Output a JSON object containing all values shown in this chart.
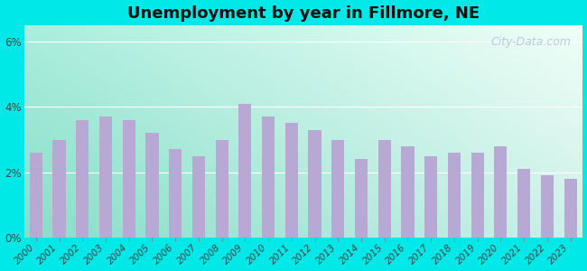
{
  "title": "Unemployment by year in Fillmore, NE",
  "years": [
    2000,
    2001,
    2002,
    2003,
    2004,
    2005,
    2006,
    2007,
    2008,
    2009,
    2010,
    2011,
    2012,
    2013,
    2014,
    2015,
    2016,
    2017,
    2018,
    2019,
    2020,
    2021,
    2022,
    2023
  ],
  "values": [
    2.6,
    3.0,
    3.6,
    3.7,
    3.6,
    3.2,
    2.7,
    2.5,
    3.0,
    4.1,
    3.7,
    3.5,
    3.3,
    3.0,
    2.4,
    3.0,
    2.8,
    2.5,
    2.6,
    2.6,
    2.8,
    2.1,
    1.9,
    1.8
  ],
  "bar_color": "#b8a8d4",
  "ylim": [
    0,
    6.5
  ],
  "yticks": [
    0,
    2,
    4,
    6
  ],
  "ytick_labels": [
    "0%",
    "2%",
    "4%",
    "6%"
  ],
  "title_fontsize": 13,
  "tick_fontsize": 7.5,
  "outer_bg": "#00e8e8",
  "bg_color_topleft": "#a8e8d8",
  "bg_color_topright": "#e8f8f0",
  "bg_color_bottomleft": "#b0ead8",
  "bg_color_bottomright": "#d8f4ec",
  "watermark": "City-Data.com",
  "watermark_fontsize": 9,
  "grid_color": "#ffffff",
  "tick_color": "#444444",
  "bar_width": 0.55
}
